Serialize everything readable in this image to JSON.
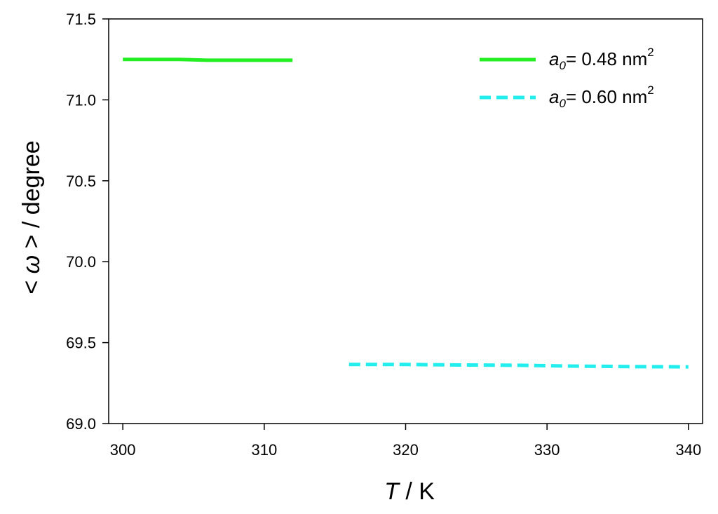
{
  "chart_data": {
    "type": "line",
    "xlabel": {
      "var": "T",
      "rest": " / K"
    },
    "ylabel": {
      "prefix": "< ",
      "var": "ω",
      "rest": " > / degree"
    },
    "xlim": [
      299,
      341
    ],
    "ylim": [
      69.0,
      71.5
    ],
    "xticks": [
      300,
      310,
      320,
      330,
      340
    ],
    "yticks": [
      69.0,
      69.5,
      70.0,
      70.5,
      71.0,
      71.5
    ],
    "xtick_labels": [
      "300",
      "310",
      "320",
      "330",
      "340"
    ],
    "ytick_labels": [
      "69.0",
      "69.5",
      "70.0",
      "70.5",
      "71.0",
      "71.5"
    ],
    "grid": false,
    "legend_position": "top-right",
    "series": [
      {
        "legend": {
          "var": "a",
          "sub": "0",
          "text": "= 0.48 nm",
          "sup": "2"
        },
        "color": "#22ee22",
        "style": "solid",
        "x": [
          300,
          304,
          306,
          308,
          310,
          312
        ],
        "y": [
          71.25,
          71.25,
          71.245,
          71.245,
          71.245,
          71.245
        ]
      },
      {
        "legend": {
          "var": "a",
          "sub": "0",
          "text": "= 0.60 nm",
          "sup": "2"
        },
        "color": "#22eeee",
        "style": "dashed",
        "x": [
          316,
          320,
          324,
          328,
          332,
          336,
          340
        ],
        "y": [
          69.365,
          69.365,
          69.362,
          69.36,
          69.355,
          69.352,
          69.35
        ]
      }
    ]
  }
}
